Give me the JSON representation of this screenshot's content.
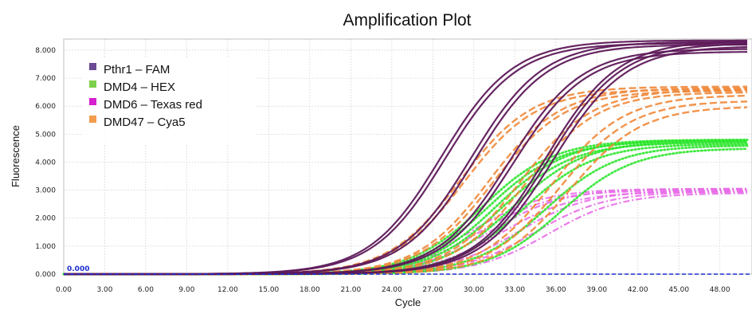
{
  "chart_data": {
    "type": "line",
    "title": "Amplification Plot",
    "xlabel": "Cycle",
    "ylabel": "Fluorescence",
    "xlim": [
      0,
      50
    ],
    "ylim": [
      0,
      8.4
    ],
    "x_ticks": [
      "0.00",
      "3.00",
      "6.00",
      "9.00",
      "12.00",
      "15.00",
      "18.00",
      "21.00",
      "24.00",
      "27.00",
      "30.00",
      "33.00",
      "36.00",
      "39.00",
      "42.00",
      "45.00",
      "48.00"
    ],
    "y_ticks": [
      "0.000",
      "1.000",
      "2.000",
      "3.000",
      "4.000",
      "5.000",
      "6.000",
      "7.000",
      "8.000"
    ],
    "grid": true,
    "legend_position": "top-left",
    "threshold": {
      "value": 0,
      "label": "0.000",
      "color": "#1a2fd0"
    },
    "series": [
      {
        "name": "Pthr1 – FAM",
        "color": "#5e1a5a",
        "legend_color": "#6b4a94",
        "style": "solid",
        "curves": [
          {
            "ct": 27.6,
            "plateau": 8.35
          },
          {
            "ct": 27.9,
            "plateau": 8.25
          },
          {
            "ct": 29.8,
            "plateau": 8.3
          },
          {
            "ct": 30.1,
            "plateau": 8.2
          },
          {
            "ct": 32.6,
            "plateau": 8.05
          },
          {
            "ct": 32.9,
            "plateau": 7.95
          },
          {
            "ct": 35.3,
            "plateau": 8.35
          },
          {
            "ct": 35.5,
            "plateau": 8.25
          },
          {
            "ct": 35.8,
            "plateau": 8.15
          }
        ]
      },
      {
        "name": "DMD4 – HEX",
        "color": "#2ee62e",
        "legend_color": "#7dd04b",
        "style": "dotted",
        "curves": [
          {
            "ct": 30.6,
            "plateau": 4.8
          },
          {
            "ct": 31.0,
            "plateau": 4.75
          },
          {
            "ct": 31.6,
            "plateau": 4.8
          },
          {
            "ct": 32.0,
            "plateau": 4.7
          },
          {
            "ct": 32.8,
            "plateau": 4.75
          },
          {
            "ct": 33.6,
            "plateau": 4.65
          },
          {
            "ct": 35.2,
            "plateau": 4.6
          },
          {
            "ct": 36.4,
            "plateau": 4.5
          }
        ]
      },
      {
        "name": "DMD6 – Texas red",
        "color": "#e86ee8",
        "legend_color": "#d61fd0",
        "style": "dashdot",
        "curves": [
          {
            "ct": 29.8,
            "plateau": 3.05
          },
          {
            "ct": 30.4,
            "plateau": 3.0
          },
          {
            "ct": 31.2,
            "plateau": 3.05
          },
          {
            "ct": 32.0,
            "plateau": 2.95
          },
          {
            "ct": 33.2,
            "plateau": 3.0
          },
          {
            "ct": 34.4,
            "plateau": 2.95
          },
          {
            "ct": 35.5,
            "plateau": 2.9
          }
        ]
      },
      {
        "name": "DMD47 – Cya5",
        "color": "#f0883a",
        "legend_color": "#f29c4c",
        "style": "dashed",
        "curves": [
          {
            "ct": 29.0,
            "plateau": 6.7
          },
          {
            "ct": 29.3,
            "plateau": 6.6
          },
          {
            "ct": 31.1,
            "plateau": 6.65
          },
          {
            "ct": 31.4,
            "plateau": 6.55
          },
          {
            "ct": 33.4,
            "plateau": 6.6
          },
          {
            "ct": 33.8,
            "plateau": 6.5
          },
          {
            "ct": 35.7,
            "plateau": 6.4
          },
          {
            "ct": 36.3,
            "plateau": 6.2
          },
          {
            "ct": 37.0,
            "plateau": 6.0
          }
        ]
      }
    ]
  }
}
